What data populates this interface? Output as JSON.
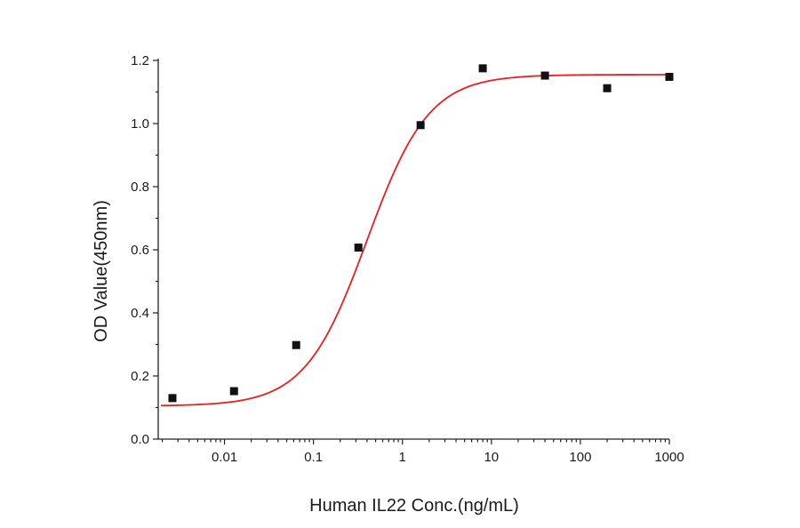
{
  "chart_data": {
    "type": "scatter",
    "title": "",
    "xlabel": "Human IL22 Conc.(ng/mL)",
    "ylabel": "OD Value(450nm)",
    "x_scale": "log",
    "xlim": [
      0.0018,
      1000
    ],
    "ylim": [
      0,
      1.2
    ],
    "x_ticks": [
      0.01,
      0.1,
      1,
      10,
      100,
      1000
    ],
    "x_tick_labels": [
      "0.01",
      "0.1",
      "1",
      "10",
      "100",
      "1000"
    ],
    "y_ticks": [
      0,
      0.2,
      0.4,
      0.6,
      0.8,
      1.0,
      1.2
    ],
    "y_tick_labels": [
      "0.0",
      "0.2",
      "0.4",
      "0.6",
      "0.8",
      "1.0",
      "1.2"
    ],
    "grid": false,
    "legend": "none",
    "points": {
      "x": [
        0.0026,
        0.0128,
        0.064,
        0.32,
        1.6,
        8,
        40,
        200,
        1000
      ],
      "y": [
        0.13,
        0.152,
        0.298,
        0.607,
        0.995,
        1.175,
        1.152,
        1.112,
        1.148
      ]
    },
    "fit_curve": {
      "model": "4PL",
      "bottom": 0.105,
      "top": 1.155,
      "ec50": 0.4,
      "hill": 1.25
    },
    "colors": {
      "points": "#111111",
      "curve": "#e8201f",
      "axis": "#222222"
    }
  }
}
